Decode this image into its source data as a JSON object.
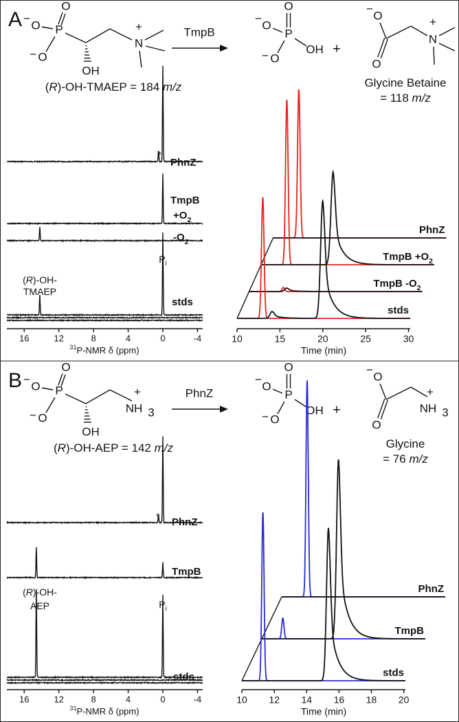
{
  "symbols": {
    "O": "O",
    "P": "P",
    "OH": "OH",
    "N": "N",
    "NH": "NH",
    "three": "3",
    "minus": "−",
    "plus": "+"
  },
  "panels": [
    {
      "label": "A",
      "scheme": {
        "enzyme": "TmpB",
        "substrate_name": [
          "(",
          "R",
          ")-OH-TMAEP = 184 ",
          "m/z"
        ],
        "product_name": [
          [
            "Glycine Betaine"
          ],
          [
            "= 118 ",
            "m/z"
          ]
        ],
        "product_color": "#e8231f"
      },
      "nmr": {
        "xlim": [
          18,
          -4.6
        ],
        "xticks": [
          16,
          12,
          8,
          4,
          0,
          -4
        ],
        "xlabel": [
          "31",
          "P-NMR δ (ppm)"
        ],
        "traces": [
          {
            "label": [
              [
                "PhnZ"
              ]
            ],
            "peaks": [
              {
                "x": 0,
                "h": 140
              },
              {
                "x": 0.5,
                "h": 16
              }
            ]
          },
          {
            "label": [
              [
                "TmpB"
              ],
              [
                "+O",
                "2"
              ]
            ],
            "peaks": [
              {
                "x": 0,
                "h": 72
              }
            ]
          },
          {
            "label": [
              [
                "-O",
                "2"
              ]
            ],
            "peaks": [
              {
                "x": 14.2,
                "h": 20
              }
            ]
          },
          {
            "label": [
              [
                "stds"
              ]
            ],
            "peaks": [
              {
                "x": 14.2,
                "h": 30
              },
              {
                "x": 0,
                "h": 120
              }
            ]
          }
        ],
        "annotations": [
          [
            "*"
          ],
          [
            "(",
            "R",
            ")-OH-"
          ],
          [
            "TMAEP"
          ],
          [
            "P",
            "i"
          ]
        ]
      },
      "lc": {
        "xlim": [
          10,
          30.2
        ],
        "xticks": [
          10,
          15,
          20,
          25,
          30
        ],
        "xlabel": "Time (min)",
        "series": [
          {
            "color": "#e8231f"
          },
          {
            "color": "#111111"
          }
        ],
        "traces": [
          {
            "label": [
              "PhnZ"
            ],
            "peaks": [
              [
                {
                  "t": 13.0,
                  "h": 216
                }
              ],
              []
            ]
          },
          {
            "label": [
              "TmpB +O",
              "2"
            ],
            "peaks": [
              [
                {
                  "t": 13.0,
                  "h": 240
                }
              ],
              [
                {
                  "t": 18.4,
                  "h": 135
                }
              ]
            ]
          },
          {
            "label": [
              "TmpB -O",
              "2"
            ],
            "peaks": [
              [
                {
                  "t": 14.0,
                  "h": 6
                }
              ],
              [
                {
                  "t": 14.4,
                  "h": 5
                }
              ]
            ]
          },
          {
            "label": [
              "stds"
            ],
            "peaks": [
              [
                {
                  "t": 13.0,
                  "h": 176
                }
              ],
              [
                {
                  "t": 14.1,
                  "h": 10
                },
                {
                  "t": 20.0,
                  "h": 171
                }
              ]
            ]
          }
        ]
      }
    },
    {
      "label": "B",
      "scheme": {
        "enzyme": "PhnZ",
        "substrate_name": [
          "(",
          "R",
          ")-OH-AEP = 142 ",
          "m/z"
        ],
        "product_name": [
          [
            "Glycine"
          ],
          [
            "= 76 ",
            "m/z"
          ]
        ],
        "product_color": "#2c2cd8"
      },
      "nmr": {
        "xlim": [
          18,
          -4.6
        ],
        "xticks": [
          16,
          12,
          8,
          4,
          0,
          -4
        ],
        "xlabel": [
          "31",
          "P-NMR δ (ppm)"
        ],
        "traces": [
          {
            "label": [
              [
                "PhnZ"
              ]
            ],
            "peaks": [
              {
                "x": 0,
                "h": 125
              },
              {
                "x": 0.5,
                "h": 12
              }
            ]
          },
          {
            "label": [
              [
                "TmpB"
              ]
            ],
            "peaks": [
              {
                "x": 14.6,
                "h": 45
              },
              {
                "x": 0,
                "h": 22
              }
            ]
          },
          {
            "label": [
              [
                "stds"
              ]
            ],
            "peaks": [
              {
                "x": 14.6,
                "h": 132
              },
              {
                "x": 0,
                "h": 120
              }
            ]
          }
        ],
        "annotations": [
          [
            "*"
          ],
          [
            "(",
            "R",
            ")-OH-"
          ],
          [
            "AEP"
          ],
          [
            "P",
            "i"
          ]
        ]
      },
      "lc": {
        "xlim": [
          10,
          20.1
        ],
        "xticks": [
          10,
          12,
          14,
          16,
          18,
          20
        ],
        "xlabel": "Time (min)",
        "series": [
          {
            "color": "#2c2cd8"
          },
          {
            "color": "#111111"
          }
        ],
        "traces": [
          {
            "label": [
              "PhnZ"
            ],
            "peaks": [
              [
                {
                  "t": 11.57,
                  "h": 315
                }
              ],
              []
            ]
          },
          {
            "label": [
              "TmpB"
            ],
            "peaks": [
              [
                {
                  "t": 11.3,
                  "h": 30
                }
              ],
              [
                {
                  "t": 14.74,
                  "h": 261
                }
              ]
            ]
          },
          {
            "label": [
              "stds"
            ],
            "peaks": [
              [
                {
                  "t": 11.3,
                  "h": 245
                }
              ],
              [
                {
                  "t": 15.35,
                  "h": 222
                }
              ]
            ]
          }
        ]
      }
    }
  ]
}
